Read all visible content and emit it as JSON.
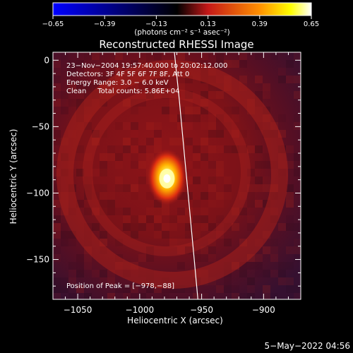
{
  "chart_data": {
    "type": "heatmap",
    "title": "Reconstructed RHESSI Image",
    "xlabel": "Heliocentric X (arcsec)",
    "ylabel": "Heliocentric Y (arcsec)",
    "xlim": [
      -1070,
      -870
    ],
    "ylim": [
      -180,
      6
    ],
    "xticks": [
      -1050,
      -1000,
      -950,
      -900
    ],
    "xtick_labels": [
      "−1050",
      "−1000",
      "−950",
      "−900"
    ],
    "yticks": [
      0,
      -50,
      -100,
      -150
    ],
    "ytick_labels": [
      "0",
      "−50",
      "−100",
      "−150"
    ],
    "colorbar": {
      "range": [
        -0.65,
        0.65
      ],
      "ticks": [
        -0.65,
        -0.39,
        -0.13,
        0.13,
        0.39,
        0.65
      ],
      "tick_labels": [
        "−0.65",
        "−0.39",
        "−0.13",
        "0.13",
        "0.39",
        "0.65"
      ],
      "label": "(photons cm⁻² s⁻¹ asec⁻²)",
      "colormap": [
        "#0000ff",
        "#000000",
        "#c41818",
        "#ff9000",
        "#ffff00",
        "#ffffff"
      ]
    },
    "annotations": [
      "23−Nov−2004 19:57:40.000 to 20:02:12.000",
      "Detectors: 3F 4F 5F 6F 7F 8F, Att 0",
      "Energy Range: 3.0 − 6.0 keV",
      "Clean     Total counts: 5.86E+04"
    ],
    "peak_label": "Position of Peak = [−978,−88]",
    "peak": [
      -978,
      -88
    ],
    "timestamp": "5−May−2022 04:56",
    "limb_curve": [
      [
        -972,
        6
      ],
      [
        -968,
        -30
      ],
      [
        -964,
        -70
      ],
      [
        -960,
        -110
      ],
      [
        -956,
        -150
      ],
      [
        -953,
        -180
      ]
    ]
  }
}
